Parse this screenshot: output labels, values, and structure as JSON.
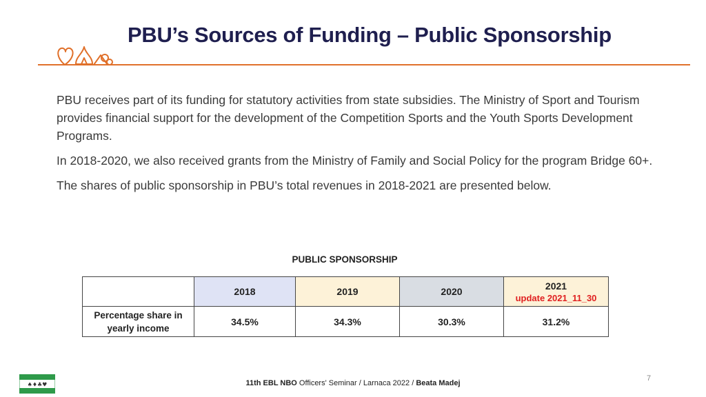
{
  "slide": {
    "title": "PBU’s Sources of Funding – Public Sponsorship",
    "paragraphs": [
      "PBU receives part of its funding for statutory activities from state subsidies. The Ministry of Sport and Tourism provides financial support for the development of the Competition Sports and the Youth Sports Development Programs.",
      "In 2018-2020, we also received grants from the Ministry of Family and Social Policy for the program Bridge 60+.",
      "The shares of public sponsorship in PBU’s total revenues in 2018-2021 are presented below."
    ],
    "table_title": "PUBLIC SPONSORSHIP",
    "table": {
      "columns": [
        "2018",
        "2019",
        "2020",
        "2021"
      ],
      "column_colors": [
        "#dfe3f5",
        "#fdf2d8",
        "#d9dde3",
        "#fdf2d8"
      ],
      "update_note": "update 2021_11_30",
      "row_label": "Percentage share in yearly income",
      "values": [
        "34.5%",
        "34.3%",
        "30.3%",
        "31.2%"
      ]
    },
    "footer": {
      "event_bold": "11th EBL NBO",
      "event_rest": " Officers' Seminar / Larnaca 2022 / ",
      "author": "Beata Madej"
    },
    "page_number": "7",
    "accent_color": "#e0702a",
    "title_color": "#1f1f4f",
    "icons": [
      "card-suits-logo-icon",
      "ebl-flag-logo-icon"
    ]
  }
}
